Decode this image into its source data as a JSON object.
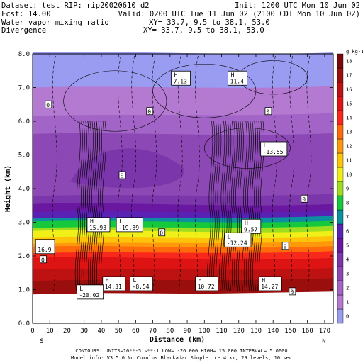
{
  "header": {
    "dataset": "Dataset: test  RIP: rip20020610 d2",
    "init": "Init: 1200 UTC Mon 10 Jun 02",
    "fcst": "Fcst:    14.00",
    "valid": "Valid: 0200 UTC Tue 11 Jun 02 (2100 CDT Mon 10 Jun 02)",
    "field1": "Water vapor mixing ratio",
    "field1_xy": "XY=  33.7,  9.5 to  38.1, 53.0",
    "field2": "Divergence",
    "field2_xy": "XY=  33.7,  9.5 to  38.1, 53.0"
  },
  "footer": {
    "contours": "CONTOURS:  UNITS=10**-5 s**-1   LOW=  -26.000      HIGH=  15.000      INTERVAL=   5.0000",
    "model_info": "Model info: V3.5.0 No Cumulus Blackadar  Simple ice     4 km,  29 levels,  10 sec"
  },
  "colors": {
    "field1_label": "#b8860b",
    "field1_xy": "#b8860b"
  },
  "chart_data": {
    "type": "heatmap",
    "xlabel": "Distance (km)",
    "ylabel": "Height (km)",
    "xlim": [
      0,
      175
    ],
    "ylim": [
      0,
      8
    ],
    "xticks": [
      0,
      10,
      20,
      30,
      40,
      50,
      60,
      70,
      80,
      90,
      100,
      110,
      120,
      130,
      140,
      150,
      160,
      170
    ],
    "yticks": [
      0.0,
      1.0,
      2.0,
      3.0,
      4.0,
      5.0,
      6.0,
      7.0,
      8.0
    ],
    "ytick_labels": [
      "0.0",
      "1.0",
      "2.0",
      "3.0",
      "4.0",
      "5.0",
      "6.0",
      "7.0",
      "8.0"
    ],
    "x_end_labels": {
      "left": "S",
      "right": "N"
    },
    "colorbar": {
      "unit": "g kg-1",
      "levels": [
        0,
        1,
        2,
        3,
        4,
        5,
        6,
        7,
        8,
        9,
        10,
        11,
        12,
        13,
        14,
        15,
        16,
        17,
        18
      ],
      "colors": [
        "#9a9cf2",
        "#b47ad2",
        "#a264c6",
        "#8c48b4",
        "#7a36aa",
        "#6a18a2",
        "#5a22b4",
        "#0c90a0",
        "#16c83c",
        "#9ede1e",
        "#f0f018",
        "#ffc40a",
        "#ff980a",
        "#ff6a0a",
        "#f8281c",
        "#de1414",
        "#be1212",
        "#9a0e0e",
        "#7c0a0a"
      ]
    },
    "shading_bands": [
      {
        "top_km": 8.0,
        "value": 0
      },
      {
        "top_km": 7.0,
        "value": 1
      },
      {
        "top_km": 6.2,
        "value": 2
      },
      {
        "top_km": 5.6,
        "value": 3
      },
      {
        "top_km": 3.8,
        "value": 4
      },
      {
        "top_km": 3.5,
        "value": 5
      },
      {
        "top_km": 3.3,
        "value": 6
      },
      {
        "top_km": 3.15,
        "value": 7
      },
      {
        "top_km": 3.0,
        "value": 8
      },
      {
        "top_km": 2.85,
        "value": 9
      },
      {
        "top_km": 2.7,
        "value": 10
      },
      {
        "top_km": 2.55,
        "value": 11
      },
      {
        "top_km": 2.4,
        "value": 12
      },
      {
        "top_km": 2.25,
        "value": 13
      },
      {
        "top_km": 2.1,
        "value": 14
      },
      {
        "top_km": 1.9,
        "value": 15
      },
      {
        "top_km": 1.6,
        "value": 16
      },
      {
        "top_km": 1.3,
        "value": 17
      }
    ],
    "terrain_top_km": 0.9,
    "extrema": [
      {
        "kind": "H",
        "value": "7.13",
        "x": 82,
        "y": 7.3
      },
      {
        "kind": "H",
        "value": "11.4",
        "x": 115,
        "y": 7.3
      },
      {
        "kind": "L",
        "value": "-13.55",
        "x": 134,
        "y": 5.2
      },
      {
        "kind": "H",
        "value": "15.93",
        "x": 33,
        "y": 2.95
      },
      {
        "kind": "L",
        "value": "-19.89",
        "x": 50,
        "y": 2.95
      },
      {
        "kind": "H",
        "value": "9.57",
        "x": 123,
        "y": 2.9
      },
      {
        "kind": "L",
        "value": "-12.24",
        "x": 113,
        "y": 2.5
      },
      {
        "kind": "",
        "value": "16.9",
        "x": 3,
        "y": 2.3
      },
      {
        "kind": "H",
        "value": "14.31",
        "x": 42,
        "y": 1.2
      },
      {
        "kind": "L",
        "value": "-8.54",
        "x": 58,
        "y": 1.2
      },
      {
        "kind": "H",
        "value": "10.72",
        "x": 96,
        "y": 1.2
      },
      {
        "kind": "H",
        "value": "14.27",
        "x": 133,
        "y": 1.2
      },
      {
        "kind": "L",
        "value": "-20.02",
        "x": 27,
        "y": 0.95
      }
    ],
    "zero_labels": [
      {
        "x": 9,
        "y": 6.5
      },
      {
        "x": 68,
        "y": 6.3
      },
      {
        "x": 137,
        "y": 6.3
      },
      {
        "x": 52,
        "y": 4.4
      },
      {
        "x": 158,
        "y": 3.7
      },
      {
        "x": 75,
        "y": 2.7
      },
      {
        "x": 6,
        "y": 1.9
      },
      {
        "x": 147,
        "y": 2.3
      },
      {
        "x": 151,
        "y": 0.95
      }
    ]
  }
}
